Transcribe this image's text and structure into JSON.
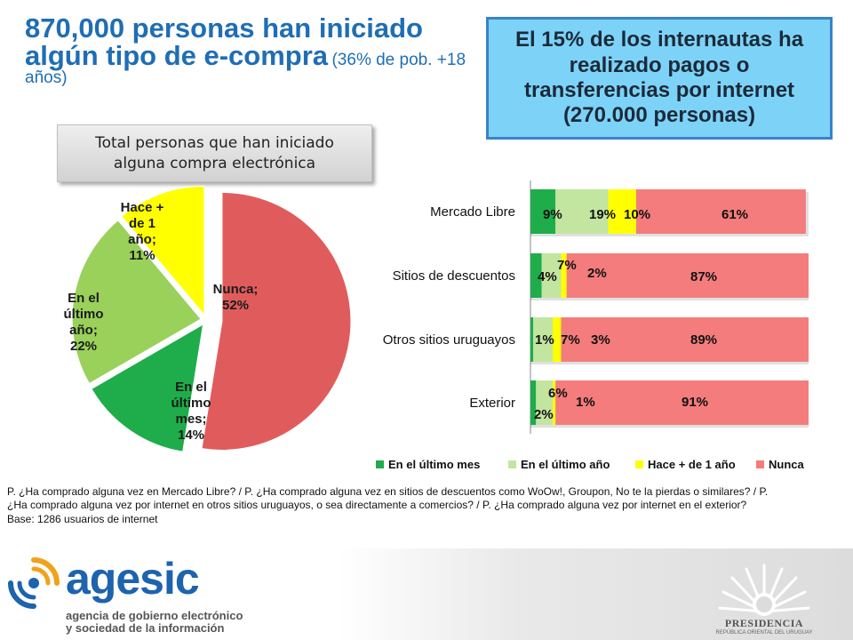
{
  "headline": {
    "main": "870,000 personas han iniciado algún tipo de e-compra",
    "paren": "(36% de pob. +18 años)"
  },
  "callout": {
    "text": "El 15% de los internautas ha realizado pagos o transferencias por internet (270.000 personas)"
  },
  "pie_title": "Total personas que han iniciado alguna compra electrónica",
  "chart_data": [
    {
      "type": "pie",
      "title": "Total personas que han iniciado alguna compra electrónica",
      "slices": [
        {
          "label": "Nunca; 52%",
          "value": 52,
          "color": "#e05c5c"
        },
        {
          "label": "En el último mes; 14%",
          "value": 14,
          "color": "#1ead4a"
        },
        {
          "label": "En el último año; 22%",
          "value": 22,
          "color": "#99d15a"
        },
        {
          "label": "Hace + de 1 año; 11%",
          "value": 11,
          "color": "#ffff00"
        }
      ]
    },
    {
      "type": "bar",
      "orientation": "horizontal",
      "stacked": "100%",
      "categories": [
        "Mercado Libre",
        "Sitios de descuentos",
        "Otros sitios uruguayos",
        "Exterior"
      ],
      "series": [
        {
          "name": "En el último mes",
          "color": "#1ead4a",
          "values": [
            9,
            4,
            1,
            2
          ],
          "labels": [
            "9%",
            "4%",
            "1%",
            "2%"
          ]
        },
        {
          "name": "En el último año",
          "color": "#c2e59f",
          "values": [
            19,
            7,
            7,
            6
          ],
          "labels": [
            "19%",
            "7%",
            "7%",
            "6%"
          ]
        },
        {
          "name": "Hace + de 1 año",
          "color": "#ffff00",
          "values": [
            10,
            2,
            3,
            1
          ],
          "labels": [
            "10%",
            "2%",
            "3%",
            "1%"
          ]
        },
        {
          "name": "Nunca",
          "color": "#f47c7c",
          "values": [
            61,
            87,
            89,
            91
          ],
          "labels": [
            "61%",
            "87%",
            "89%",
            "91%"
          ]
        }
      ],
      "legend": "bottom"
    }
  ],
  "footnote": {
    "line1": "P. ¿Ha comprado alguna vez en Mercado Libre? / P. ¿Ha comprado alguna vez en sitios de descuentos como WoOw!, Groupon, No te la pierdas o similares? / P. ¿Ha comprado alguna vez por internet en otros sitios uruguayos, o sea directamente a comercios? / P. ¿Ha comprado alguna vez por internet en el exterior?",
    "line2": "Base: 1286 usuarios de internet"
  },
  "footer": {
    "logo_word": "agesic",
    "logo_sub_1": "agencia de gobierno electrónico",
    "logo_sub_2": "y sociedad de la información",
    "seal_name": "PRESIDENCIA",
    "seal_sub": "REPÚBLICA ORIENTAL DEL URUGUAY"
  }
}
